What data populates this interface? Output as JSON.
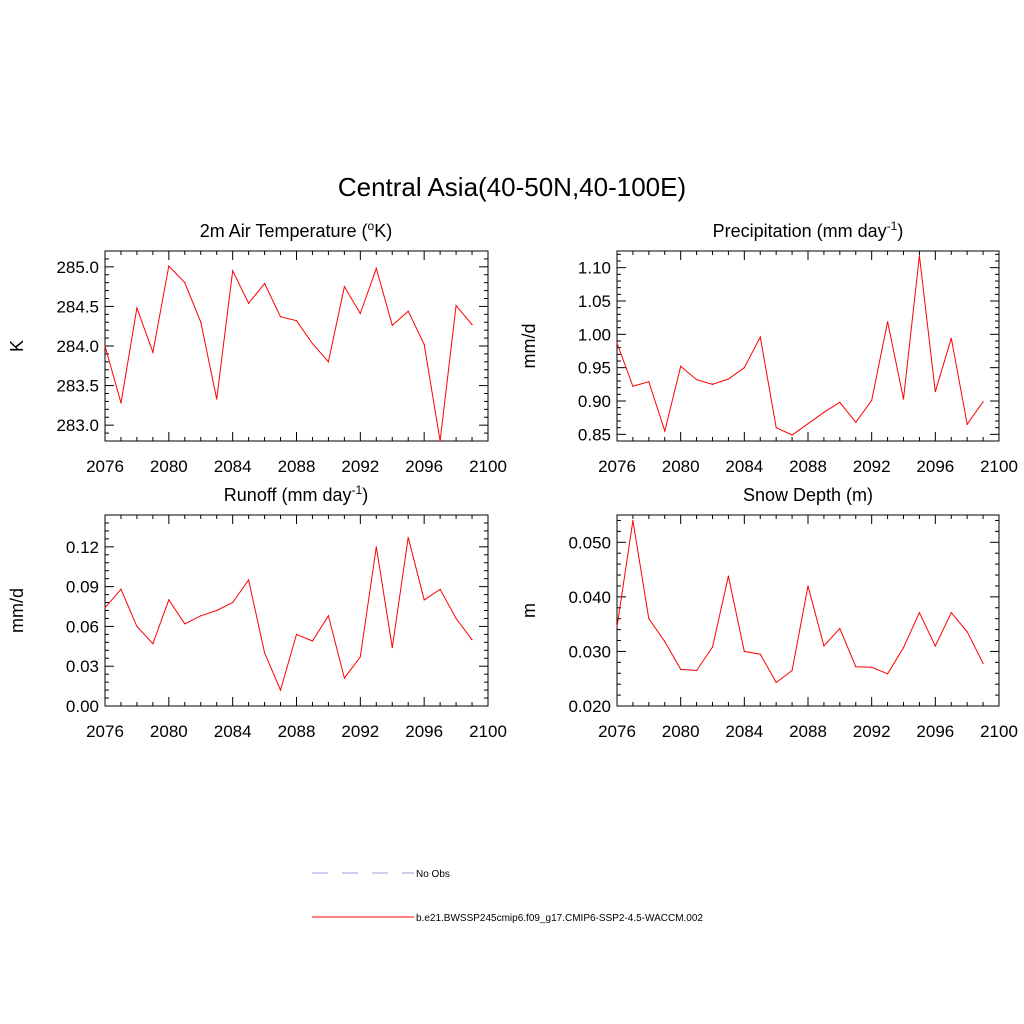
{
  "title": "Central Asia(40-50N,40-100E)",
  "colors": {
    "series": "#ff0000",
    "obs": "#a0a0e0",
    "axis": "#000000"
  },
  "legend": {
    "obs_label": "No Obs",
    "model_label": "b.e21.BWSSP245cmip6.f09_g17.CMIP6-SSP2-4.5-WACCM.002"
  },
  "chart_data": [
    {
      "type": "line",
      "title_main": "2m Air Temperature (",
      "title_sup_o": "o",
      "title_tail": "K)",
      "ylabel": "K",
      "xlim": [
        2076,
        2100
      ],
      "ylim": [
        282.8,
        285.2
      ],
      "xticks": [
        2076,
        2080,
        2084,
        2088,
        2092,
        2096,
        2100
      ],
      "yticks": [
        283.0,
        283.5,
        284.0,
        284.5,
        285.0
      ],
      "yticklabels": [
        "283.0",
        "283.5",
        "284.0",
        "284.5",
        "285.0"
      ],
      "x": [
        2076,
        2077,
        2078,
        2079,
        2080,
        2081,
        2082,
        2083,
        2084,
        2085,
        2086,
        2087,
        2088,
        2089,
        2090,
        2091,
        2092,
        2093,
        2094,
        2095,
        2096,
        2097,
        2098,
        2099
      ],
      "values": [
        284.0,
        283.28,
        284.48,
        283.92,
        285.01,
        284.8,
        284.3,
        283.33,
        284.95,
        284.54,
        284.79,
        284.37,
        284.32,
        284.03,
        283.8,
        284.75,
        284.41,
        284.98,
        284.26,
        284.44,
        284.02,
        282.8,
        284.51,
        284.27
      ]
    },
    {
      "type": "line",
      "title_main": "Precipitation (mm day",
      "title_sup": "-1",
      "title_tail": ")",
      "ylabel": "mm/d",
      "xlim": [
        2076,
        2100
      ],
      "ylim": [
        0.84,
        1.125
      ],
      "xticks": [
        2076,
        2080,
        2084,
        2088,
        2092,
        2096,
        2100
      ],
      "yticks": [
        0.85,
        0.9,
        0.95,
        1.0,
        1.05,
        1.1
      ],
      "yticklabels": [
        "0.85",
        "0.90",
        "0.95",
        "1.00",
        "1.05",
        "1.10"
      ],
      "x": [
        2076,
        2077,
        2078,
        2079,
        2080,
        2081,
        2082,
        2083,
        2084,
        2085,
        2086,
        2087,
        2088,
        2089,
        2090,
        2091,
        2092,
        2093,
        2094,
        2095,
        2096,
        2097,
        2098,
        2099
      ],
      "values": [
        0.987,
        0.922,
        0.929,
        0.855,
        0.952,
        0.932,
        0.925,
        0.933,
        0.95,
        0.996,
        0.86,
        0.849,
        0.866,
        0.883,
        0.898,
        0.868,
        0.901,
        1.019,
        0.903,
        1.118,
        0.914,
        0.994,
        0.865,
        0.899
      ]
    },
    {
      "type": "line",
      "title_main": "Runoff (mm day",
      "title_sup": "-1",
      "title_tail": ")",
      "ylabel": "mm/d",
      "xlim": [
        2076,
        2100
      ],
      "ylim": [
        0.0,
        0.144
      ],
      "xticks": [
        2076,
        2080,
        2084,
        2088,
        2092,
        2096,
        2100
      ],
      "yticks": [
        0.0,
        0.03,
        0.06,
        0.09,
        0.12
      ],
      "yticklabels": [
        "0.00",
        "0.03",
        "0.06",
        "0.09",
        "0.12"
      ],
      "x": [
        2076,
        2077,
        2078,
        2079,
        2080,
        2081,
        2082,
        2083,
        2084,
        2085,
        2086,
        2087,
        2088,
        2089,
        2090,
        2091,
        2092,
        2093,
        2094,
        2095,
        2096,
        2097,
        2098,
        2099
      ],
      "values": [
        0.074,
        0.088,
        0.06,
        0.047,
        0.08,
        0.062,
        0.068,
        0.072,
        0.078,
        0.095,
        0.04,
        0.012,
        0.054,
        0.049,
        0.068,
        0.021,
        0.037,
        0.12,
        0.044,
        0.127,
        0.08,
        0.088,
        0.066,
        0.05
      ]
    },
    {
      "type": "line",
      "title_main": "Snow Depth (m)",
      "ylabel": "m",
      "xlim": [
        2076,
        2100
      ],
      "ylim": [
        0.02,
        0.055
      ],
      "xticks": [
        2076,
        2080,
        2084,
        2088,
        2092,
        2096,
        2100
      ],
      "yticks": [
        0.02,
        0.03,
        0.04,
        0.05
      ],
      "yticklabels": [
        "0.020",
        "0.030",
        "0.040",
        "0.050"
      ],
      "x": [
        2076,
        2077,
        2078,
        2079,
        2080,
        2081,
        2082,
        2083,
        2084,
        2085,
        2086,
        2087,
        2088,
        2089,
        2090,
        2091,
        2092,
        2093,
        2094,
        2095,
        2096,
        2097,
        2098,
        2099
      ],
      "values": [
        0.0345,
        0.054,
        0.036,
        0.0318,
        0.0267,
        0.0265,
        0.0308,
        0.0438,
        0.03,
        0.0295,
        0.0243,
        0.0265,
        0.042,
        0.031,
        0.0342,
        0.0272,
        0.0271,
        0.0259,
        0.0307,
        0.0371,
        0.031,
        0.0371,
        0.0336,
        0.0278
      ]
    }
  ]
}
